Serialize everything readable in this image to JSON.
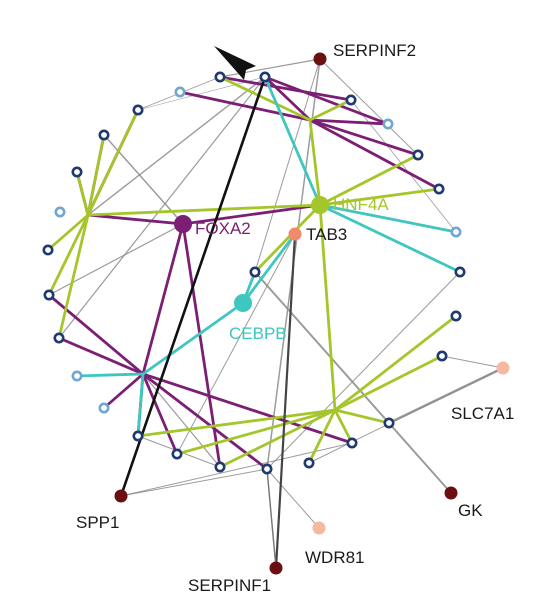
{
  "colors": {
    "foxa2": "#7b1f74",
    "hnf4a": "#a5c62a",
    "cebpb": "#3ec6c0",
    "tab3": "#f08a6a",
    "dark_node": "#6b0f12",
    "light_node": "#f5b8a0",
    "ring": "#1f3a6e",
    "ring_light": "#6fa7d0",
    "label": "#1a1a1a",
    "gray_edge": "#8a8a8a",
    "black_edge": "#111111"
  },
  "labels": {
    "serpinf2": "SERPINF2",
    "foxa2": "FOXA2",
    "hnf4a": "HNF4A",
    "tab3": "TAB3",
    "cebpb": "CEBPB",
    "slc7a1": "SLC7A1",
    "spp1": "SPP1",
    "gk": "GK",
    "wdr81": "WDR81",
    "serpinf1": "SERPINF1"
  }
}
